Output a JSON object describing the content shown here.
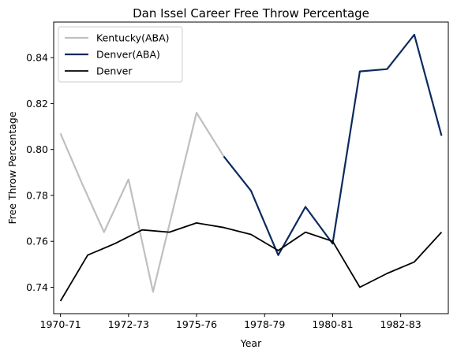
{
  "chart_data": {
    "type": "line",
    "title": "Dan Issel Career Free Throw Percentage",
    "xlabel": "Year",
    "ylabel": "Free Throw Percentage",
    "x_tick_labels": [
      {
        "index": 0,
        "label": "1970-71"
      },
      {
        "index": 2.5,
        "label": "1972-73"
      },
      {
        "index": 5,
        "label": "1975-76"
      },
      {
        "index": 7.5,
        "label": "1978-79"
      },
      {
        "index": 10,
        "label": "1980-81"
      },
      {
        "index": 12.5,
        "label": "1982-83"
      }
    ],
    "y_ticks": [
      0.74,
      0.76,
      0.78,
      0.8,
      0.82,
      0.84
    ],
    "ylim": [
      0.7285,
      0.8555
    ],
    "xlim": [
      -0.25,
      14.25
    ],
    "grid": false,
    "legend_position": "upper-left",
    "series": [
      {
        "name": "Kentucky(ABA)",
        "color": "#bfbfbf",
        "width": 2.2,
        "points": [
          [
            0,
            0.807
          ],
          [
            0.8,
            0.785
          ],
          [
            1.6,
            0.764
          ],
          [
            2.5,
            0.787
          ],
          [
            3.4,
            0.738
          ],
          [
            5,
            0.816
          ],
          [
            6,
            0.797
          ]
        ]
      },
      {
        "name": "Denver(ABA)",
        "color": "#0b2a5e",
        "width": 2.2,
        "points": [
          [
            6,
            0.797
          ],
          [
            7,
            0.782
          ],
          [
            8,
            0.754
          ],
          [
            9,
            0.775
          ],
          [
            10,
            0.759
          ],
          [
            11,
            0.834
          ],
          [
            12,
            0.835
          ],
          [
            13,
            0.85
          ],
          [
            14,
            0.806
          ]
        ]
      },
      {
        "name": "Denver",
        "color": "#000000",
        "width": 1.8,
        "points": [
          [
            0,
            0.734
          ],
          [
            1,
            0.754
          ],
          [
            2,
            0.759
          ],
          [
            3,
            0.765
          ],
          [
            4,
            0.764
          ],
          [
            5,
            0.768
          ],
          [
            6,
            0.766
          ],
          [
            7,
            0.763
          ],
          [
            8,
            0.756
          ],
          [
            9,
            0.764
          ],
          [
            10,
            0.76
          ],
          [
            11,
            0.74
          ],
          [
            12,
            0.746
          ],
          [
            13,
            0.751
          ],
          [
            14,
            0.764
          ]
        ]
      }
    ]
  }
}
